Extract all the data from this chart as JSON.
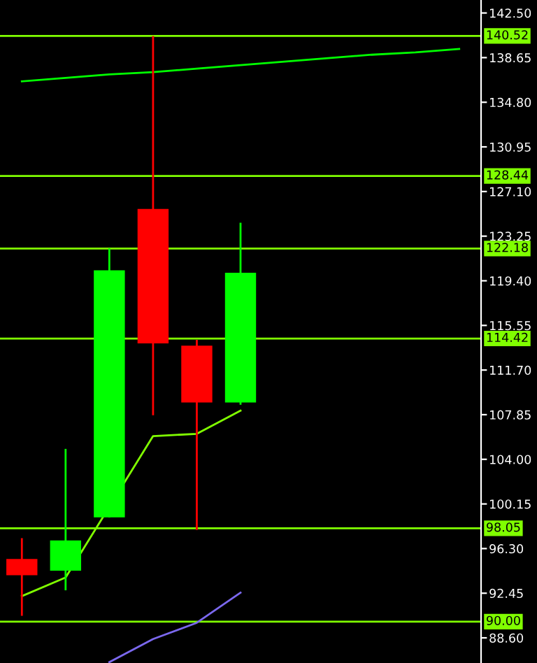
{
  "chart_data": {
    "type": "candlestick",
    "categories": [
      null,
      null,
      null,
      null,
      null,
      null,
      null,
      null,
      null,
      null,
      null
    ],
    "ohlc": [
      [
        95.4,
        97.2,
        90.5,
        94.0
      ],
      [
        94.4,
        104.9,
        92.7,
        97.0
      ],
      [
        99.0,
        122.2,
        99.0,
        120.3
      ],
      [
        125.6,
        140.52,
        107.8,
        114.0
      ],
      [
        113.8,
        114.3,
        97.9,
        108.9
      ],
      [
        108.9,
        124.4,
        108.7,
        120.1
      ],
      null,
      null,
      null,
      null,
      null
    ],
    "colors": [
      "#ff0000",
      "#00ff00",
      "#00ff00",
      "#ff0000",
      "#ff0000",
      "#00ff00",
      null,
      null,
      null,
      null,
      null
    ],
    "series": [
      {
        "type": "line",
        "color": "#00ff00",
        "values": [
          136.6,
          136.9,
          137.2,
          137.4,
          137.7,
          138.0,
          138.3,
          138.6,
          138.9,
          139.1,
          139.4
        ]
      },
      {
        "type": "line",
        "color": "#80ff00",
        "values": [
          92.2,
          93.8,
          null,
          106.0,
          106.2,
          108.2,
          null,
          null,
          null,
          null,
          null
        ]
      },
      {
        "type": "line",
        "color": "#7b68ee",
        "values": [
          null,
          null,
          86.5,
          88.5,
          89.9,
          92.5,
          null,
          null,
          null,
          null,
          null
        ]
      }
    ],
    "ref_lines": [
      {
        "axis": "y",
        "value": 140.52,
        "label": "140.52",
        "color": "#80ff00"
      },
      {
        "axis": "y",
        "value": 128.44,
        "label": "128.44",
        "color": "#80ff00"
      },
      {
        "axis": "y",
        "value": 122.18,
        "label": "122.18",
        "color": "#80ff00"
      },
      {
        "axis": "y",
        "value": 114.42,
        "label": "114.42",
        "color": "#80ff00"
      },
      {
        "axis": "y",
        "value": 98.05,
        "label": "98.05",
        "color": "#80ff00"
      },
      {
        "axis": "y",
        "value": 90.0,
        "label": "90.00",
        "color": "#80ff00"
      }
    ],
    "ylim": [
      86.43,
      143.62
    ],
    "yticks": [
      {
        "value": 142.5,
        "label": "142.50"
      },
      {
        "value": 138.65,
        "label": "138.65"
      },
      {
        "value": 134.8,
        "label": "134.80"
      },
      {
        "value": 130.95,
        "label": "130.95"
      },
      {
        "value": 127.1,
        "label": "127.10"
      },
      {
        "value": 123.25,
        "label": "123.25"
      },
      {
        "value": 119.4,
        "label": "119.40"
      },
      {
        "value": 115.55,
        "label": "115.55"
      },
      {
        "value": 111.7,
        "label": "111.70"
      },
      {
        "value": 107.85,
        "label": "107.85"
      },
      {
        "value": 104.0,
        "label": "104.00"
      },
      {
        "value": 100.15,
        "label": "100.15"
      },
      {
        "value": 96.3,
        "label": "96.30"
      },
      {
        "value": 92.45,
        "label": "92.45"
      },
      {
        "value": 88.6,
        "label": "88.60"
      }
    ],
    "tick_labels": "y",
    "grid": false
  }
}
